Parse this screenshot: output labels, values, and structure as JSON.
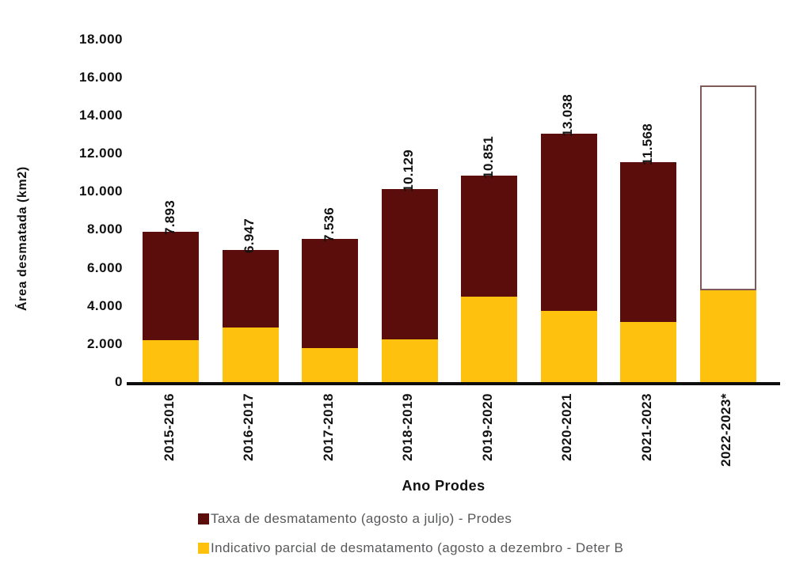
{
  "chart_data": {
    "type": "bar",
    "stacked": true,
    "title": "",
    "xlabel": "Ano Prodes",
    "ylabel": "Área desmatada (km2)",
    "ylim": [
      0,
      18000
    ],
    "grid": false,
    "legend_position": "bottom-left",
    "y_ticks": [
      {
        "value": 0,
        "label": "0"
      },
      {
        "value": 2000,
        "label": "2.000"
      },
      {
        "value": 4000,
        "label": "4.000"
      },
      {
        "value": 6000,
        "label": "6.000"
      },
      {
        "value": 8000,
        "label": "8.000"
      },
      {
        "value": 10000,
        "label": "10.000"
      },
      {
        "value": 12000,
        "label": "12.000"
      },
      {
        "value": 14000,
        "label": "14.000"
      },
      {
        "value": 16000,
        "label": "16.000"
      },
      {
        "value": 18000,
        "label": "18.000"
      }
    ],
    "categories": [
      "2015-2016",
      "2016-2017",
      "2017-2018",
      "2018-2019",
      "2019-2020",
      "2020-2021",
      "2021-2023",
      "2022-2023*"
    ],
    "series": [
      {
        "name": "Taxa de desmatamento (agosto a juljo) - Prodes",
        "color": "#5A0D0A",
        "values": [
          5693,
          4097,
          5736,
          7879,
          6351,
          9288,
          8418,
          null
        ]
      },
      {
        "name": "Indicativo parcial de desmatamento (agosto a dezembro - Deter B",
        "color": "#FEC10D",
        "values": [
          2200,
          2850,
          1800,
          2250,
          4500,
          3750,
          3150,
          4800
        ]
      }
    ],
    "totals": [
      7893,
      6947,
      7536,
      10129,
      10851,
      13038,
      11568,
      null
    ],
    "bar_labels": [
      "7.893",
      "6.947",
      "7.536",
      "10.129",
      "10.851",
      "13.038",
      "11.568",
      ""
    ],
    "projection": {
      "category": "2022-2023*",
      "index": 7,
      "estimated_total": 15600,
      "style": "outlined-empty-bar",
      "border_color": "#7E5A58"
    },
    "colors": {
      "prodes_dark_red": "#5A0D0A",
      "deter_yellow": "#FEC10D",
      "axis_text": "#111111",
      "legend_text": "#58595B",
      "axis_line": "#0d0d0d"
    }
  }
}
